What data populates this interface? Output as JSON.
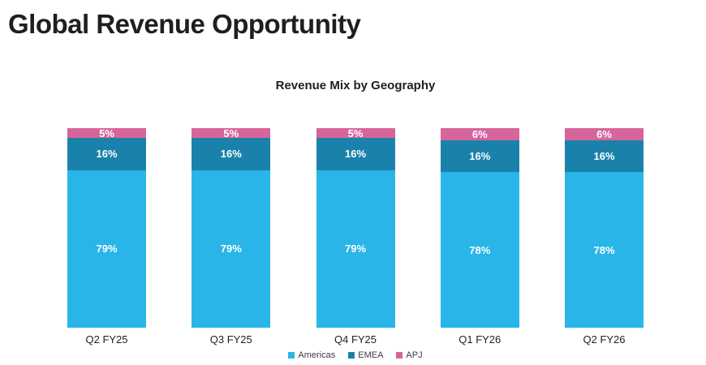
{
  "page": {
    "title": "Global Revenue Opportunity"
  },
  "chart_data": {
    "type": "bar",
    "variant": "stacked-100",
    "title": "Revenue Mix by Geography",
    "categories": [
      "Q2 FY25",
      "Q3 FY25",
      "Q4 FY25",
      "Q1 FY26",
      "Q2 FY26"
    ],
    "series": [
      {
        "name": "Americas",
        "color": "#29B5E8",
        "values": [
          79,
          79,
          79,
          78,
          78
        ]
      },
      {
        "name": "EMEA",
        "color": "#1A82AA",
        "values": [
          16,
          16,
          16,
          16,
          16
        ]
      },
      {
        "name": "APJ",
        "color": "#D7649B",
        "values": [
          5,
          5,
          5,
          6,
          6
        ]
      }
    ],
    "value_suffix": "%",
    "ylim": [
      0,
      100
    ],
    "grid": false,
    "axis_lines": false,
    "legend_position": "bottom",
    "label_color": "#ffffff"
  }
}
